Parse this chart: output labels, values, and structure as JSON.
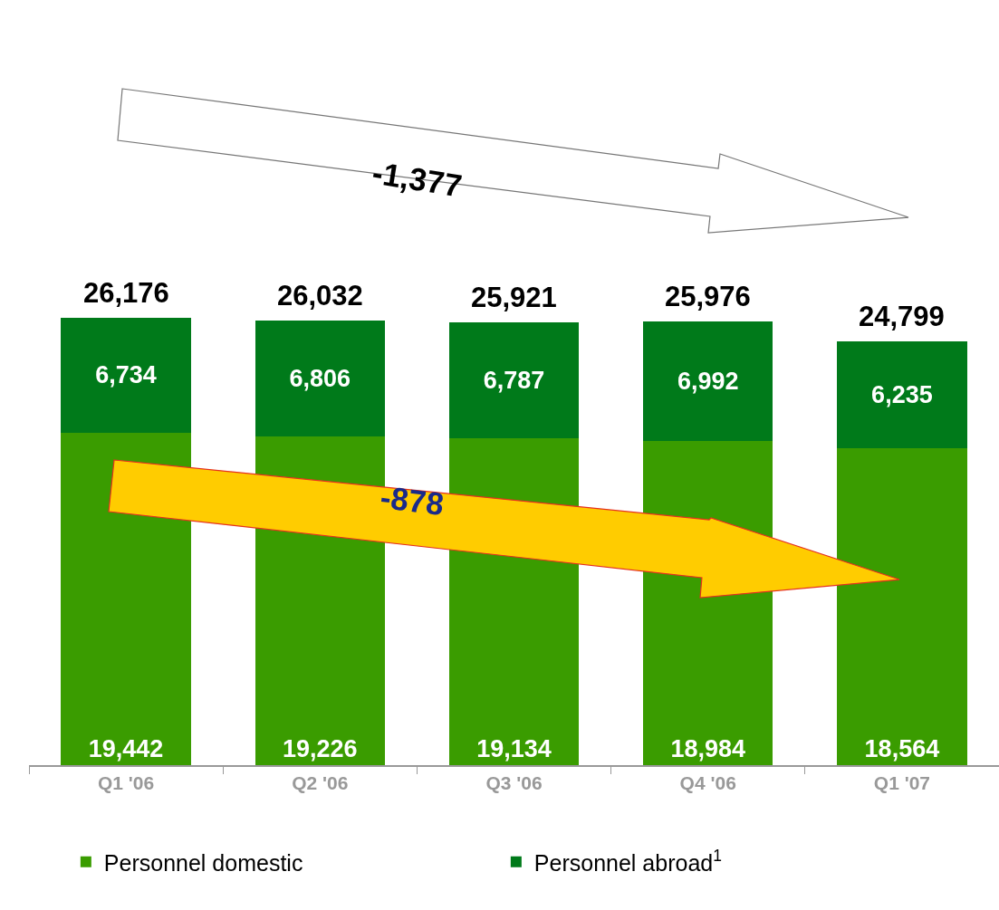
{
  "chart_data": {
    "type": "bar",
    "stacked": true,
    "categories": [
      "Q1 '06",
      "Q2 '06",
      "Q3 '06",
      "Q4 '06",
      "Q1 '07"
    ],
    "series": [
      {
        "name": "Personnel domestic",
        "color": "#3a9c00",
        "values": [
          19442,
          19226,
          19134,
          18984,
          18564
        ],
        "value_labels": [
          "19,442",
          "19,226",
          "19,134",
          "18,984",
          "18,564"
        ]
      },
      {
        "name": "Personnel abroad$^{1}$",
        "color": "#007a1a",
        "values": [
          6734,
          6806,
          6787,
          6992,
          6235
        ],
        "value_labels": [
          "6,734",
          "6,806",
          "6,787",
          "6,992",
          "6,235"
        ]
      }
    ],
    "totals": [
      "26,176",
      "26,032",
      "25,921",
      "25,976",
      "24,799"
    ],
    "annotations": [
      "-1,377",
      "-878"
    ],
    "tick_labels": "x",
    "legend": "bottom"
  }
}
